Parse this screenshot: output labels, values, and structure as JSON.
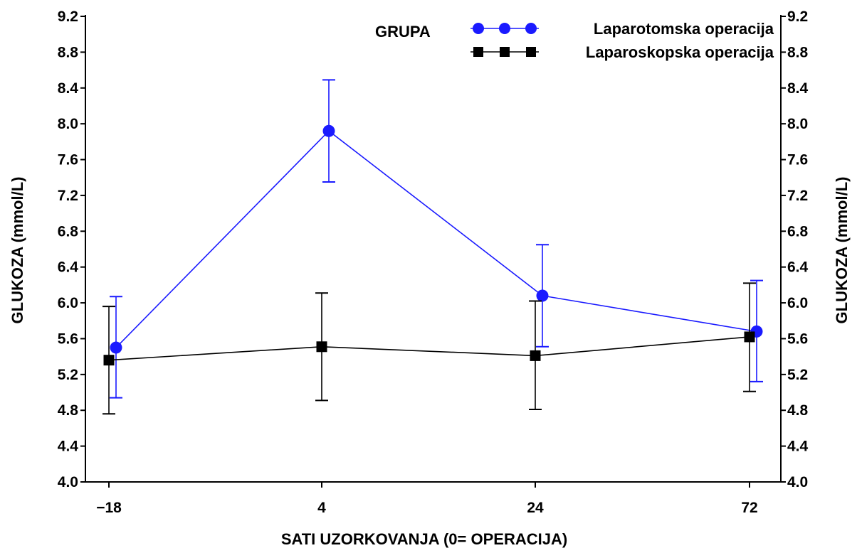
{
  "chart_data": {
    "type": "line",
    "title": "",
    "xlabel": "SATI UZORKOVANJA (0= OPERACIJA)",
    "ylabel": "GLUKOZA (mmol/L)",
    "ylabel_right": "GLUKOZA (mmol/L)",
    "categories": [
      "−18",
      "4",
      "24",
      "72"
    ],
    "ylim": [
      4.0,
      9.2
    ],
    "yticks": [
      "4.0",
      "4.4",
      "4.8",
      "5.2",
      "5.6",
      "6.0",
      "6.4",
      "6.8",
      "7.2",
      "7.6",
      "8.0",
      "8.4",
      "8.8",
      "9.2"
    ],
    "grid": false,
    "legend": {
      "title": "GRUPA",
      "placement": "top-right"
    },
    "series": [
      {
        "name": "Laparotomska operacija",
        "color": "#1a1aff",
        "marker": "circle",
        "values": [
          5.5,
          7.92,
          6.08,
          5.68
        ],
        "err_low": [
          4.94,
          7.35,
          5.51,
          5.12
        ],
        "err_high": [
          6.07,
          8.49,
          6.65,
          6.25
        ]
      },
      {
        "name": "Laparoskopska operacija",
        "color": "#000000",
        "marker": "square",
        "values": [
          5.36,
          5.51,
          5.41,
          5.62
        ],
        "err_low": [
          4.76,
          4.91,
          4.81,
          5.01
        ],
        "err_high": [
          5.96,
          6.11,
          6.02,
          6.22
        ]
      }
    ]
  }
}
